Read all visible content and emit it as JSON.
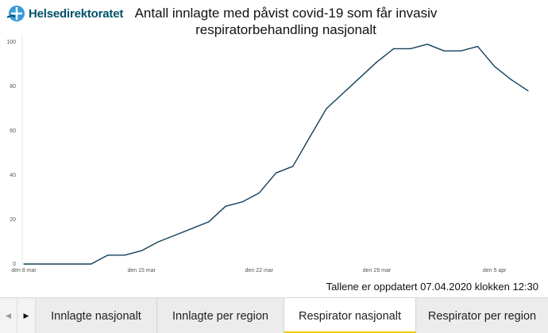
{
  "header": {
    "logo_text": "Helsedirektoratet",
    "title_line1": "Antall innlagte med påvist covid-19 som får invasiv",
    "title_line2": "respiratorbehandling nasjonalt"
  },
  "updated_text": "Tallene er oppdatert 07.04.2020 klokken 12:30",
  "chart_data": {
    "type": "line",
    "title": "Antall innlagte med påvist covid-19 som får invasiv respiratorbehandling nasjonalt",
    "xlabel": "",
    "ylabel": "",
    "ylim": [
      0,
      100
    ],
    "yticks": [
      0,
      20,
      40,
      60,
      80,
      100
    ],
    "xlim": [
      "2020-03-08",
      "2020-04-07"
    ],
    "xticks": [
      {
        "date": "2020-03-08",
        "label": "den 8 mar"
      },
      {
        "date": "2020-03-15",
        "label": "den 15 mar"
      },
      {
        "date": "2020-03-22",
        "label": "den 22 mar"
      },
      {
        "date": "2020-03-29",
        "label": "den 29 mar"
      },
      {
        "date": "2020-04-05",
        "label": "den 5 apr"
      }
    ],
    "grid": false,
    "line_color": "#12405a",
    "series": [
      {
        "x": [
          "2020-03-08",
          "2020-03-09",
          "2020-03-10",
          "2020-03-11",
          "2020-03-12",
          "2020-03-13",
          "2020-03-14",
          "2020-03-15",
          "2020-03-16",
          "2020-03-17",
          "2020-03-18",
          "2020-03-19",
          "2020-03-20",
          "2020-03-21",
          "2020-03-22",
          "2020-03-23",
          "2020-03-24",
          "2020-03-25",
          "2020-03-26",
          "2020-03-27",
          "2020-03-28",
          "2020-03-29",
          "2020-03-30",
          "2020-03-31",
          "2020-04-01",
          "2020-04-02",
          "2020-04-03",
          "2020-04-04",
          "2020-04-05",
          "2020-04-06",
          "2020-04-07"
        ],
        "values": [
          0,
          0,
          0,
          0,
          0,
          4,
          4,
          6,
          10,
          13,
          16,
          19,
          26,
          28,
          32,
          41,
          44,
          57,
          70,
          77,
          84,
          91,
          97,
          97,
          99,
          96,
          96,
          98,
          89,
          83,
          78
        ]
      }
    ]
  },
  "tabs": [
    {
      "label": "Innlagte nasjonalt",
      "active": false
    },
    {
      "label": "Innlagte per region",
      "active": false
    },
    {
      "label": "Respirator nasjonalt",
      "active": true
    },
    {
      "label": "Respirator per region",
      "active": false
    }
  ],
  "nav": {
    "prev_icon": "◀",
    "next_icon": "▶"
  }
}
